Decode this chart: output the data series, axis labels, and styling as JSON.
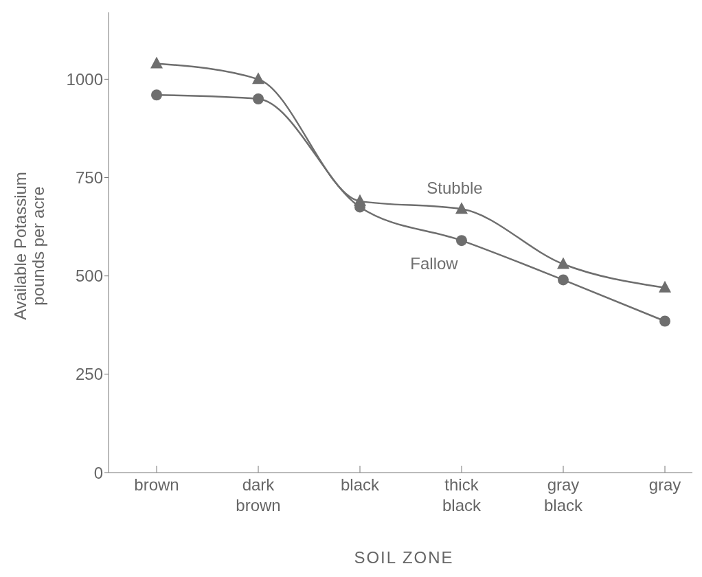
{
  "chart_data": {
    "type": "line",
    "xlabel": "SOIL ZONE",
    "ylabel": "Available Potassium\npounds per acre",
    "categories": [
      "brown",
      "dark brown",
      "black",
      "thick black",
      "gray black",
      "gray"
    ],
    "series": [
      {
        "name": "Stubble",
        "color": "#6e6e6e",
        "marker": "triangle",
        "values": [
          1040,
          1000,
          690,
          670,
          530,
          470
        ]
      },
      {
        "name": "Fallow",
        "color": "#6e6e6e",
        "marker": "circle",
        "values": [
          960,
          950,
          675,
          590,
          490,
          385
        ]
      }
    ],
    "ylim": [
      0,
      1170
    ],
    "yticks": [
      0,
      250,
      500,
      750,
      1000
    ],
    "grid": false,
    "legend": false,
    "line_style": "solid"
  }
}
